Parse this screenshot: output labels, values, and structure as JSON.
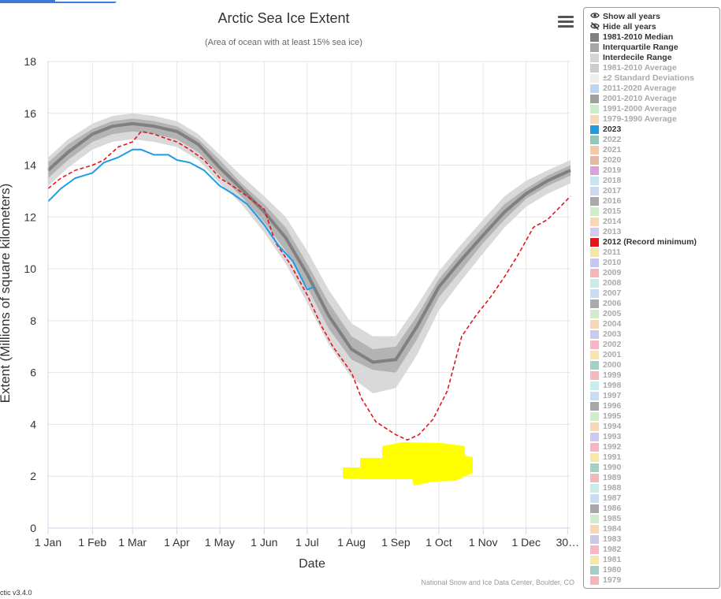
{
  "title": "Arctic Sea Ice Extent",
  "subtitle": "(Area of ocean with at least 15% sea ice)",
  "credit": "National Snow and Ice Data Center, Boulder, CO",
  "version": "ctic v3.4.0",
  "icons": {
    "menu": "hamburger-menu-icon",
    "show": "eye-icon",
    "hide": "eye-slash-icon"
  },
  "chart_data": {
    "type": "line",
    "xlabel": "Date",
    "ylabel": "Extent (Millions of square kilometers)",
    "x_unit": "day of year",
    "xlim": [
      1,
      366
    ],
    "ylim": [
      0,
      18
    ],
    "yticks": [
      0,
      2,
      4,
      6,
      8,
      10,
      12,
      14,
      16,
      18
    ],
    "xticks": [
      {
        "label": "1 Jan",
        "day": 1
      },
      {
        "label": "1 Feb",
        "day": 32
      },
      {
        "label": "1 Mar",
        "day": 60
      },
      {
        "label": "1 Apr",
        "day": 91
      },
      {
        "label": "1 May",
        "day": 121
      },
      {
        "label": "1 Jun",
        "day": 152
      },
      {
        "label": "1 Jul",
        "day": 182
      },
      {
        "label": "1 Aug",
        "day": 213
      },
      {
        "label": "1 Sep",
        "day": 244
      },
      {
        "label": "1 Oct",
        "day": 274
      },
      {
        "label": "1 Nov",
        "day": 305
      },
      {
        "label": "1 Dec",
        "day": 335
      },
      {
        "label": "30…",
        "day": 364
      }
    ],
    "grid": true,
    "legend_position": "right",
    "colors": {
      "median": "#808080",
      "iqr": "#b3b3b3",
      "idr": "#d9d9d9",
      "y2023": "#1f9be6",
      "y2012": "#e8141b",
      "highlight": "#ffff00"
    },
    "median_1981_2010": {
      "x": [
        1,
        15,
        32,
        46,
        60,
        75,
        91,
        106,
        121,
        136,
        152,
        167,
        182,
        197,
        213,
        228,
        244,
        259,
        274,
        289,
        305,
        320,
        335,
        350,
        366
      ],
      "y": [
        13.8,
        14.5,
        15.2,
        15.5,
        15.6,
        15.5,
        15.3,
        14.8,
        13.9,
        13.1,
        12.2,
        11.2,
        9.8,
        8.2,
        6.9,
        6.4,
        6.5,
        7.8,
        9.3,
        10.3,
        11.3,
        12.2,
        12.9,
        13.4,
        13.8
      ]
    },
    "iqr_upper": [
      14.1,
      14.8,
      15.4,
      15.7,
      15.8,
      15.7,
      15.5,
      15.0,
      14.2,
      13.3,
      12.5,
      11.6,
      10.2,
      8.7,
      7.4,
      6.9,
      7.0,
      8.2,
      9.6,
      10.6,
      11.6,
      12.5,
      13.1,
      13.6,
      14.0
    ],
    "iqr_lower": [
      13.5,
      14.2,
      14.9,
      15.2,
      15.3,
      15.2,
      15.0,
      14.5,
      13.6,
      12.8,
      11.8,
      10.7,
      9.3,
      7.7,
      6.5,
      6.1,
      6.0,
      7.3,
      8.9,
      9.9,
      11.0,
      11.9,
      12.7,
      13.2,
      13.6
    ],
    "idr_upper": [
      14.3,
      15.0,
      15.6,
      15.9,
      16.0,
      15.9,
      15.7,
      15.2,
      14.4,
      13.6,
      12.8,
      12.0,
      10.7,
      9.2,
      7.9,
      7.4,
      7.4,
      8.6,
      9.9,
      10.9,
      11.9,
      12.8,
      13.4,
      13.8,
      14.2
    ],
    "idr_lower": [
      13.2,
      13.9,
      14.6,
      14.9,
      15.0,
      14.9,
      14.7,
      14.2,
      13.3,
      12.5,
      11.4,
      10.2,
      8.7,
      7.1,
      5.8,
      5.2,
      5.4,
      6.7,
      8.4,
      9.5,
      10.6,
      11.6,
      12.4,
      12.9,
      13.3
    ],
    "series": [
      {
        "name": "2023",
        "x": [
          1,
          10,
          20,
          32,
          40,
          50,
          60,
          66,
          75,
          85,
          91,
          100,
          110,
          121,
          130,
          140,
          152,
          162,
          172,
          182,
          187
        ],
        "y": [
          12.6,
          13.1,
          13.5,
          13.7,
          14.1,
          14.3,
          14.6,
          14.6,
          14.4,
          14.4,
          14.2,
          14.1,
          13.8,
          13.2,
          12.9,
          12.5,
          11.7,
          10.9,
          10.3,
          9.2,
          9.3
        ]
      },
      {
        "name": "2012 (Record minimum)",
        "x": [
          1,
          10,
          20,
          32,
          40,
          50,
          60,
          66,
          75,
          85,
          91,
          100,
          110,
          121,
          130,
          140,
          152,
          160,
          170,
          182,
          192,
          200,
          213,
          220,
          230,
          244,
          252,
          260,
          270,
          280,
          290,
          300,
          310,
          320,
          330,
          340,
          350,
          366
        ],
        "y": [
          13.1,
          13.5,
          13.8,
          14.0,
          14.2,
          14.7,
          14.9,
          15.3,
          15.2,
          15.0,
          14.9,
          14.6,
          14.2,
          13.5,
          13.2,
          12.8,
          12.3,
          11.0,
          10.2,
          9.0,
          7.8,
          7.0,
          6.0,
          5.0,
          4.1,
          3.6,
          3.4,
          3.6,
          4.2,
          5.3,
          7.4,
          8.2,
          8.9,
          9.7,
          10.6,
          11.6,
          11.9,
          12.8
        ]
      }
    ]
  },
  "legend": {
    "show_all": "Show all years",
    "hide_all": "Hide all years",
    "items": [
      {
        "label": "1981-2010 Median",
        "color": "#808080",
        "on": true
      },
      {
        "label": "Interquartile Range",
        "color": "#a6a6a6",
        "on": true
      },
      {
        "label": "Interdecile Range",
        "color": "#d4d4d4",
        "on": true
      },
      {
        "label": "1981-2010 Average",
        "color": "#cccccc",
        "on": false
      },
      {
        "label": "±2 Standard Deviations",
        "color": "#eeeeee",
        "on": false
      },
      {
        "label": "2011-2020 Average",
        "color": "#b9d7f3",
        "on": false
      },
      {
        "label": "2001-2010 Average",
        "color": "#a0a0a0",
        "on": false
      },
      {
        "label": "1991-2000 Average",
        "color": "#c9efc6",
        "on": false
      },
      {
        "label": "1979-1990 Average",
        "color": "#f6d9b7",
        "on": false
      },
      {
        "label": "2023",
        "color": "#1f9be6",
        "on": true
      },
      {
        "label": "2022",
        "color": "#93c6ba",
        "on": false
      },
      {
        "label": "2021",
        "color": "#f8c9a0",
        "on": false
      },
      {
        "label": "2020",
        "color": "#e6b9a6",
        "on": false
      },
      {
        "label": "2019",
        "color": "#dca0de",
        "on": false
      },
      {
        "label": "2018",
        "color": "#c6e5ee",
        "on": false
      },
      {
        "label": "2017",
        "color": "#c7daf1",
        "on": false
      },
      {
        "label": "2016",
        "color": "#a9a9a9",
        "on": false
      },
      {
        "label": "2015",
        "color": "#ccefc8",
        "on": false
      },
      {
        "label": "2014",
        "color": "#f7d9b5",
        "on": false
      },
      {
        "label": "2013",
        "color": "#d4c9f1",
        "on": false
      },
      {
        "label": "2012 (Record minimum)",
        "color": "#e8141b",
        "on": true
      },
      {
        "label": "2011",
        "color": "#f7e7a6",
        "on": false
      },
      {
        "label": "2010",
        "color": "#c6c8f2",
        "on": false
      },
      {
        "label": "2009",
        "color": "#f6b5b9",
        "on": false
      },
      {
        "label": "2008",
        "color": "#c9ece8",
        "on": false
      },
      {
        "label": "2007",
        "color": "#c8ddf3",
        "on": false
      },
      {
        "label": "2006",
        "color": "#aaaaaa",
        "on": false
      },
      {
        "label": "2005",
        "color": "#cdeec8",
        "on": false
      },
      {
        "label": "2004",
        "color": "#f6d7b6",
        "on": false
      },
      {
        "label": "2003",
        "color": "#cdc8f0",
        "on": false
      },
      {
        "label": "2002",
        "color": "#f6b6c5",
        "on": false
      },
      {
        "label": "2001",
        "color": "#f7e6a8",
        "on": false
      },
      {
        "label": "2000",
        "color": "#a6cfc6",
        "on": false
      },
      {
        "label": "1999",
        "color": "#f6b8b8",
        "on": false
      },
      {
        "label": "1998",
        "color": "#c8eded",
        "on": false
      },
      {
        "label": "1997",
        "color": "#c8dcf3",
        "on": false
      },
      {
        "label": "1996",
        "color": "#a8a8a8",
        "on": false
      },
      {
        "label": "1995",
        "color": "#cdeec7",
        "on": false
      },
      {
        "label": "1994",
        "color": "#f6d8b5",
        "on": false
      },
      {
        "label": "1993",
        "color": "#cbc9f1",
        "on": false
      },
      {
        "label": "1992",
        "color": "#f6b5c2",
        "on": false
      },
      {
        "label": "1991",
        "color": "#f7e8a7",
        "on": false
      },
      {
        "label": "1990",
        "color": "#a5cfc5",
        "on": false
      },
      {
        "label": "1989",
        "color": "#f6b7b7",
        "on": false
      },
      {
        "label": "1988",
        "color": "#c8eeec",
        "on": false
      },
      {
        "label": "1987",
        "color": "#c8dcf3",
        "on": false
      },
      {
        "label": "1986",
        "color": "#a8a8a8",
        "on": false
      },
      {
        "label": "1985",
        "color": "#cdefc8",
        "on": false
      },
      {
        "label": "1984",
        "color": "#f6d8b6",
        "on": false
      },
      {
        "label": "1983",
        "color": "#cbc8f0",
        "on": false
      },
      {
        "label": "1982",
        "color": "#f6b6c4",
        "on": false
      },
      {
        "label": "1981",
        "color": "#f7e7a6",
        "on": false
      },
      {
        "label": "1980",
        "color": "#a5cec5",
        "on": false
      },
      {
        "label": "1979",
        "color": "#f6b6b6",
        "on": false
      }
    ]
  }
}
